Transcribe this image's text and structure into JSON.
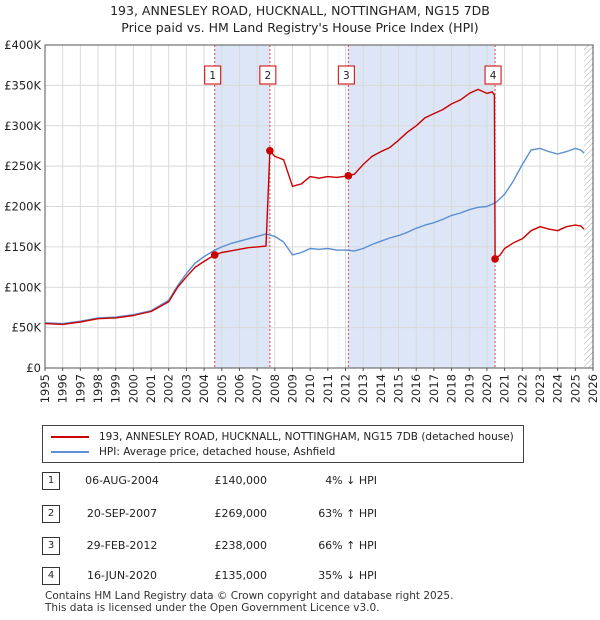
{
  "title_line1": "193, ANNESLEY ROAD, HUCKNALL, NOTTINGHAM, NG15 7DB",
  "title_line2": "Price paid vs. HM Land Registry's House Price Index (HPI)",
  "chart_data": {
    "type": "line",
    "title": "193, ANNESLEY ROAD, HUCKNALL, NOTTINGHAM, NG15 7DB — Price paid vs. HM Land Registry's House Price Index (HPI)",
    "xlim": [
      1995,
      2026
    ],
    "ylim": [
      0,
      400000
    ],
    "x_ticks": [
      1995,
      1996,
      1997,
      1998,
      1999,
      2000,
      2001,
      2002,
      2003,
      2004,
      2005,
      2006,
      2007,
      2008,
      2009,
      2010,
      2011,
      2012,
      2013,
      2014,
      2015,
      2016,
      2017,
      2018,
      2019,
      2020,
      2021,
      2022,
      2023,
      2024,
      2025,
      2026
    ],
    "y_ticks": [
      0,
      50000,
      100000,
      150000,
      200000,
      250000,
      300000,
      350000,
      400000
    ],
    "y_tick_labels": [
      "£0",
      "£50K",
      "£100K",
      "£150K",
      "£200K",
      "£250K",
      "£300K",
      "£350K",
      "£400K"
    ],
    "grid": true,
    "colors": {
      "property": "#cc0000",
      "hpi": "#5b8fd0",
      "shade": "#dde6f7",
      "vline": "#dd4444"
    },
    "series": [
      {
        "name": "193, ANNESLEY ROAD, HUCKNALL, NOTTINGHAM, NG15 7DB (detached house)",
        "color": "#cc0000",
        "x": [
          1995.0,
          1996.0,
          1997.0,
          1998.0,
          1999.0,
          2000.0,
          2001.0,
          2002.0,
          2002.5,
          2003.0,
          2003.5,
          2004.0,
          2004.6,
          2005.0,
          2005.5,
          2006.0,
          2006.5,
          2007.0,
          2007.5,
          2007.72,
          2008.0,
          2008.5,
          2009.0,
          2009.5,
          2010.0,
          2010.5,
          2011.0,
          2011.5,
          2012.16,
          2012.5,
          2013.0,
          2013.5,
          2014.0,
          2014.5,
          2015.0,
          2015.5,
          2016.0,
          2016.5,
          2017.0,
          2017.5,
          2018.0,
          2018.5,
          2019.0,
          2019.5,
          2020.0,
          2020.3,
          2020.42,
          2020.46,
          2020.75,
          2021.0,
          2021.5,
          2022.0,
          2022.5,
          2023.0,
          2023.5,
          2024.0,
          2024.5,
          2025.0,
          2025.3,
          2025.5
        ],
        "values": [
          55000,
          54000,
          57000,
          61000,
          62000,
          65000,
          70000,
          82000,
          100000,
          113000,
          125000,
          132000,
          140000,
          143000,
          145000,
          147000,
          149000,
          150000,
          151000,
          269000,
          262000,
          258000,
          225000,
          228000,
          237000,
          235000,
          237000,
          236000,
          238000,
          240000,
          252000,
          262000,
          268000,
          273000,
          282000,
          292000,
          300000,
          310000,
          315000,
          320000,
          327000,
          332000,
          340000,
          345000,
          340000,
          342000,
          338000,
          135000,
          140000,
          148000,
          155000,
          160000,
          170000,
          175000,
          172000,
          170000,
          175000,
          177000,
          176000,
          172000
        ]
      },
      {
        "name": "HPI: Average price, detached house, Ashfield",
        "color": "#5b8fd0",
        "x": [
          1995.0,
          1996.0,
          1997.0,
          1998.0,
          1999.0,
          2000.0,
          2001.0,
          2002.0,
          2002.5,
          2003.0,
          2003.5,
          2004.0,
          2004.6,
          2005.0,
          2005.5,
          2006.0,
          2006.5,
          2007.0,
          2007.5,
          2008.0,
          2008.5,
          2009.0,
          2009.5,
          2010.0,
          2010.5,
          2011.0,
          2011.5,
          2012.0,
          2012.5,
          2013.0,
          2013.5,
          2014.0,
          2014.5,
          2015.0,
          2015.5,
          2016.0,
          2016.5,
          2017.0,
          2017.5,
          2018.0,
          2018.5,
          2019.0,
          2019.5,
          2020.0,
          2020.5,
          2021.0,
          2021.5,
          2022.0,
          2022.5,
          2023.0,
          2023.5,
          2024.0,
          2024.5,
          2025.0,
          2025.3,
          2025.5
        ],
        "values": [
          56000,
          55000,
          58000,
          62000,
          63000,
          66000,
          71000,
          84000,
          102000,
          117000,
          130000,
          138000,
          146000,
          150000,
          154000,
          157000,
          160000,
          163000,
          166000,
          163000,
          156000,
          140000,
          143000,
          148000,
          147000,
          148000,
          146000,
          146000,
          145000,
          148000,
          153000,
          157000,
          161000,
          164000,
          168000,
          173000,
          177000,
          180000,
          184000,
          189000,
          192000,
          196000,
          199000,
          200000,
          205000,
          215000,
          232000,
          252000,
          270000,
          272000,
          268000,
          265000,
          268000,
          272000,
          270000,
          266000
        ]
      }
    ],
    "sales": [
      {
        "marker": "1",
        "x": 2004.6,
        "value": 140000
      },
      {
        "marker": "2",
        "x": 2007.72,
        "value": 269000
      },
      {
        "marker": "3",
        "x": 2012.16,
        "value": 238000
      },
      {
        "marker": "4",
        "x": 2020.46,
        "value": 135000
      }
    ],
    "shaded_periods": [
      [
        2004.6,
        2007.72
      ],
      [
        2012.16,
        2020.46
      ]
    ],
    "future_hatch_from": 2025.5
  },
  "legend": {
    "property": "193, ANNESLEY ROAD, HUCKNALL, NOTTINGHAM, NG15 7DB (detached house)",
    "hpi": "HPI: Average price, detached house, Ashfield"
  },
  "sales_table": [
    {
      "num": "1",
      "date": "06-AUG-2004",
      "price": "£140,000",
      "hpi": "4% ↓ HPI"
    },
    {
      "num": "2",
      "date": "20-SEP-2007",
      "price": "£269,000",
      "hpi": "63% ↑ HPI"
    },
    {
      "num": "3",
      "date": "29-FEB-2012",
      "price": "£238,000",
      "hpi": "66% ↑ HPI"
    },
    {
      "num": "4",
      "date": "16-JUN-2020",
      "price": "£135,000",
      "hpi": "35% ↓ HPI"
    }
  ],
  "footer": {
    "line1": "Contains HM Land Registry data © Crown copyright and database right 2025.",
    "line2": "This data is licensed under the Open Government Licence v3.0."
  }
}
